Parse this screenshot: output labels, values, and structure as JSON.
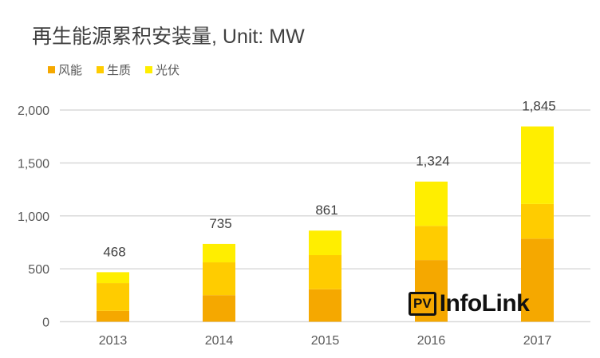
{
  "chart_data": {
    "type": "bar",
    "stacked": true,
    "title": "再生能源累积安装量, Unit: MW",
    "categories": [
      "2013",
      "2014",
      "2015",
      "2016",
      "2017"
    ],
    "series": [
      {
        "name": "风能",
        "values": [
          103,
          251,
          307,
          583,
          785
        ],
        "color": "#F5A800"
      },
      {
        "name": "生质",
        "values": [
          262,
          310,
          322,
          323,
          327
        ],
        "color": "#FFCC00"
      },
      {
        "name": "光伏",
        "values": [
          103,
          174,
          232,
          418,
          733
        ],
        "color": "#FFEE00"
      }
    ],
    "totals": [
      "468",
      "735",
      "861",
      "1,324",
      "1,845"
    ],
    "yticks": [
      "0",
      "500",
      "1,000",
      "1,500",
      "2,000"
    ],
    "ylim": [
      0,
      2000
    ],
    "grid": true,
    "legend": "top-left"
  },
  "watermark": {
    "box": "PV",
    "text": "InfoLink"
  }
}
